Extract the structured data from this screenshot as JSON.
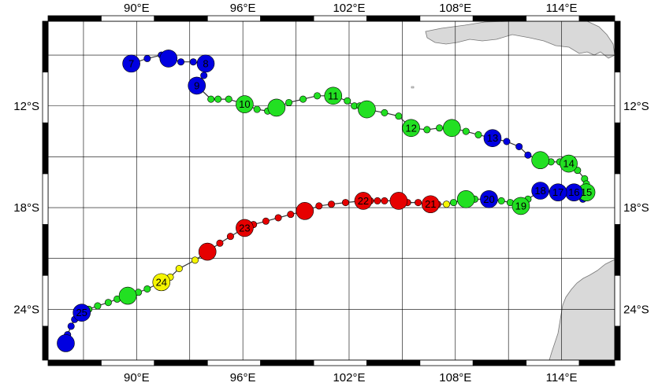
{
  "map": {
    "extent": {
      "lon_min": 85,
      "lon_max": 117,
      "lat_min": -27,
      "lat_max": -7
    },
    "grid_step_deg": 3,
    "colors": {
      "land": "#d9d9d9",
      "land_stroke": "#777777",
      "grid": "#000000",
      "track": "#333333",
      "categories": {
        "blue": "#0000e0",
        "green": "#22e022",
        "red": "#e60000",
        "yellow": "#f5f500"
      }
    },
    "x_ticks": [
      {
        "lon": 90,
        "label": "90°E"
      },
      {
        "lon": 96,
        "label": "96°E"
      },
      {
        "lon": 102,
        "label": "102°E"
      },
      {
        "lon": 108,
        "label": "108°E"
      },
      {
        "lon": 114,
        "label": "114°E"
      }
    ],
    "y_ticks": [
      {
        "lat": -12,
        "label": "12°S"
      },
      {
        "lat": -18,
        "label": "18°S"
      },
      {
        "lat": -24,
        "label": "24°S"
      }
    ]
  },
  "track": [
    {
      "lon": 89.7,
      "lat": -9.5,
      "c": "blue",
      "big": true,
      "label": "7"
    },
    {
      "lon": 90.6,
      "lat": -9.2,
      "c": "blue"
    },
    {
      "lon": 91.4,
      "lat": -9.0,
      "c": "blue"
    },
    {
      "lon": 91.8,
      "lat": -9.2,
      "c": "blue",
      "big": true
    },
    {
      "lon": 92.5,
      "lat": -9.4,
      "c": "blue"
    },
    {
      "lon": 93.2,
      "lat": -9.4,
      "c": "blue"
    },
    {
      "lon": 93.9,
      "lat": -9.5,
      "c": "blue",
      "big": true,
      "label": "8"
    },
    {
      "lon": 93.8,
      "lat": -10.2,
      "c": "blue"
    },
    {
      "lon": 93.4,
      "lat": -10.8,
      "c": "blue",
      "big": true,
      "label": "9"
    },
    {
      "lon": 94.2,
      "lat": -11.6,
      "c": "green"
    },
    {
      "lon": 94.6,
      "lat": -11.6,
      "c": "green"
    },
    {
      "lon": 95.2,
      "lat": -11.6,
      "c": "green"
    },
    {
      "lon": 96.1,
      "lat": -11.9,
      "c": "green",
      "big": true,
      "label": "10"
    },
    {
      "lon": 96.8,
      "lat": -12.2,
      "c": "green"
    },
    {
      "lon": 97.4,
      "lat": -12.3,
      "c": "green"
    },
    {
      "lon": 97.9,
      "lat": -12.1,
      "c": "green",
      "big": true
    },
    {
      "lon": 98.6,
      "lat": -11.8,
      "c": "green"
    },
    {
      "lon": 99.4,
      "lat": -11.6,
      "c": "green"
    },
    {
      "lon": 100.2,
      "lat": -11.4,
      "c": "green"
    },
    {
      "lon": 101.1,
      "lat": -11.4,
      "c": "green",
      "big": true,
      "label": "11"
    },
    {
      "lon": 101.9,
      "lat": -11.7,
      "c": "green"
    },
    {
      "lon": 102.3,
      "lat": -12.0,
      "c": "green"
    },
    {
      "lon": 102.6,
      "lat": -12.0,
      "c": "green"
    },
    {
      "lon": 103.0,
      "lat": -12.2,
      "c": "green",
      "big": true
    },
    {
      "lon": 104.0,
      "lat": -12.4,
      "c": "green"
    },
    {
      "lon": 104.8,
      "lat": -12.6,
      "c": "green"
    },
    {
      "lon": 105.5,
      "lat": -13.3,
      "c": "green",
      "big": true,
      "label": "12"
    },
    {
      "lon": 106.4,
      "lat": -13.4,
      "c": "green"
    },
    {
      "lon": 107.1,
      "lat": -13.3,
      "c": "green"
    },
    {
      "lon": 107.8,
      "lat": -13.3,
      "c": "green",
      "big": true
    },
    {
      "lon": 108.6,
      "lat": -13.5,
      "c": "green"
    },
    {
      "lon": 109.3,
      "lat": -13.7,
      "c": "green"
    },
    {
      "lon": 110.1,
      "lat": -13.9,
      "c": "blue",
      "big": true,
      "label": "13"
    },
    {
      "lon": 110.9,
      "lat": -14.1,
      "c": "blue"
    },
    {
      "lon": 111.6,
      "lat": -14.4,
      "c": "blue"
    },
    {
      "lon": 112.1,
      "lat": -14.9,
      "c": "blue"
    },
    {
      "lon": 112.8,
      "lat": -15.2,
      "c": "green",
      "big": true
    },
    {
      "lon": 113.4,
      "lat": -15.3,
      "c": "green"
    },
    {
      "lon": 113.9,
      "lat": -15.3,
      "c": "green"
    },
    {
      "lon": 114.4,
      "lat": -15.4,
      "c": "green",
      "big": true,
      "label": "14"
    },
    {
      "lon": 114.9,
      "lat": -15.8,
      "c": "green"
    },
    {
      "lon": 115.3,
      "lat": -16.3,
      "c": "green"
    },
    {
      "lon": 115.4,
      "lat": -16.6,
      "c": "green"
    },
    {
      "lon": 115.4,
      "lat": -17.1,
      "c": "green",
      "big": true,
      "label": "15"
    },
    {
      "lon": 115.2,
      "lat": -17.5,
      "c": "blue"
    },
    {
      "lon": 114.7,
      "lat": -17.1,
      "c": "blue",
      "big": true,
      "label": "16"
    },
    {
      "lon": 113.8,
      "lat": -17.1,
      "c": "blue",
      "big": true,
      "label": "17"
    },
    {
      "lon": 112.8,
      "lat": -17.0,
      "c": "blue",
      "big": true,
      "label": "18"
    },
    {
      "lon": 112.1,
      "lat": -17.5,
      "c": "green"
    },
    {
      "lon": 111.7,
      "lat": -17.9,
      "c": "green",
      "big": true,
      "label": "19"
    },
    {
      "lon": 111.1,
      "lat": -17.7,
      "c": "green"
    },
    {
      "lon": 110.6,
      "lat": -17.6,
      "c": "green"
    },
    {
      "lon": 109.9,
      "lat": -17.5,
      "c": "blue",
      "big": true,
      "label": "20"
    },
    {
      "lon": 109.1,
      "lat": -17.5,
      "c": "green"
    },
    {
      "lon": 108.6,
      "lat": -17.5,
      "c": "green",
      "big": true
    },
    {
      "lon": 107.9,
      "lat": -17.7,
      "c": "green"
    },
    {
      "lon": 107.5,
      "lat": -17.8,
      "c": "yellow"
    },
    {
      "lon": 107.0,
      "lat": -17.8,
      "c": "red"
    },
    {
      "lon": 106.6,
      "lat": -17.8,
      "c": "red",
      "big": true,
      "label": "21"
    },
    {
      "lon": 105.9,
      "lat": -17.7,
      "c": "red"
    },
    {
      "lon": 105.3,
      "lat": -17.7,
      "c": "red"
    },
    {
      "lon": 104.8,
      "lat": -17.6,
      "c": "red",
      "big": true
    },
    {
      "lon": 104.0,
      "lat": -17.6,
      "c": "red"
    },
    {
      "lon": 103.6,
      "lat": -17.6,
      "c": "red"
    },
    {
      "lon": 103.2,
      "lat": -17.6,
      "c": "red"
    },
    {
      "lon": 102.8,
      "lat": -17.6,
      "c": "red",
      "big": true,
      "label": "22"
    },
    {
      "lon": 101.8,
      "lat": -17.7,
      "c": "red"
    },
    {
      "lon": 101.0,
      "lat": -17.8,
      "c": "red"
    },
    {
      "lon": 100.3,
      "lat": -17.9,
      "c": "red"
    },
    {
      "lon": 99.5,
      "lat": -18.2,
      "c": "red",
      "big": true
    },
    {
      "lon": 98.7,
      "lat": -18.4,
      "c": "red"
    },
    {
      "lon": 98.0,
      "lat": -18.6,
      "c": "red"
    },
    {
      "lon": 97.3,
      "lat": -18.8,
      "c": "red"
    },
    {
      "lon": 96.6,
      "lat": -19.0,
      "c": "red"
    },
    {
      "lon": 96.1,
      "lat": -19.2,
      "c": "red",
      "big": true,
      "label": "23"
    },
    {
      "lon": 95.3,
      "lat": -19.7,
      "c": "red"
    },
    {
      "lon": 94.7,
      "lat": -20.1,
      "c": "red"
    },
    {
      "lon": 94.0,
      "lat": -20.6,
      "c": "red",
      "big": true
    },
    {
      "lon": 93.3,
      "lat": -21.1,
      "c": "yellow"
    },
    {
      "lon": 92.4,
      "lat": -21.6,
      "c": "yellow"
    },
    {
      "lon": 91.9,
      "lat": -22.1,
      "c": "yellow"
    },
    {
      "lon": 91.4,
      "lat": -22.4,
      "c": "yellow",
      "big": true,
      "label": "24"
    },
    {
      "lon": 90.6,
      "lat": -22.8,
      "c": "green"
    },
    {
      "lon": 90.1,
      "lat": -23.0,
      "c": "green"
    },
    {
      "lon": 89.5,
      "lat": -23.2,
      "c": "green",
      "big": true
    },
    {
      "lon": 88.9,
      "lat": -23.4,
      "c": "green"
    },
    {
      "lon": 88.4,
      "lat": -23.6,
      "c": "green"
    },
    {
      "lon": 87.8,
      "lat": -23.8,
      "c": "green"
    },
    {
      "lon": 87.3,
      "lat": -24.0,
      "c": "green"
    },
    {
      "lon": 86.9,
      "lat": -24.2,
      "c": "blue",
      "big": true,
      "label": "25"
    },
    {
      "lon": 86.5,
      "lat": -24.6,
      "c": "blue"
    },
    {
      "lon": 86.3,
      "lat": -25.0,
      "c": "blue"
    },
    {
      "lon": 86.1,
      "lat": -25.5,
      "c": "blue"
    },
    {
      "lon": 86.0,
      "lat": -26.0,
      "c": "blue",
      "big": true
    }
  ]
}
